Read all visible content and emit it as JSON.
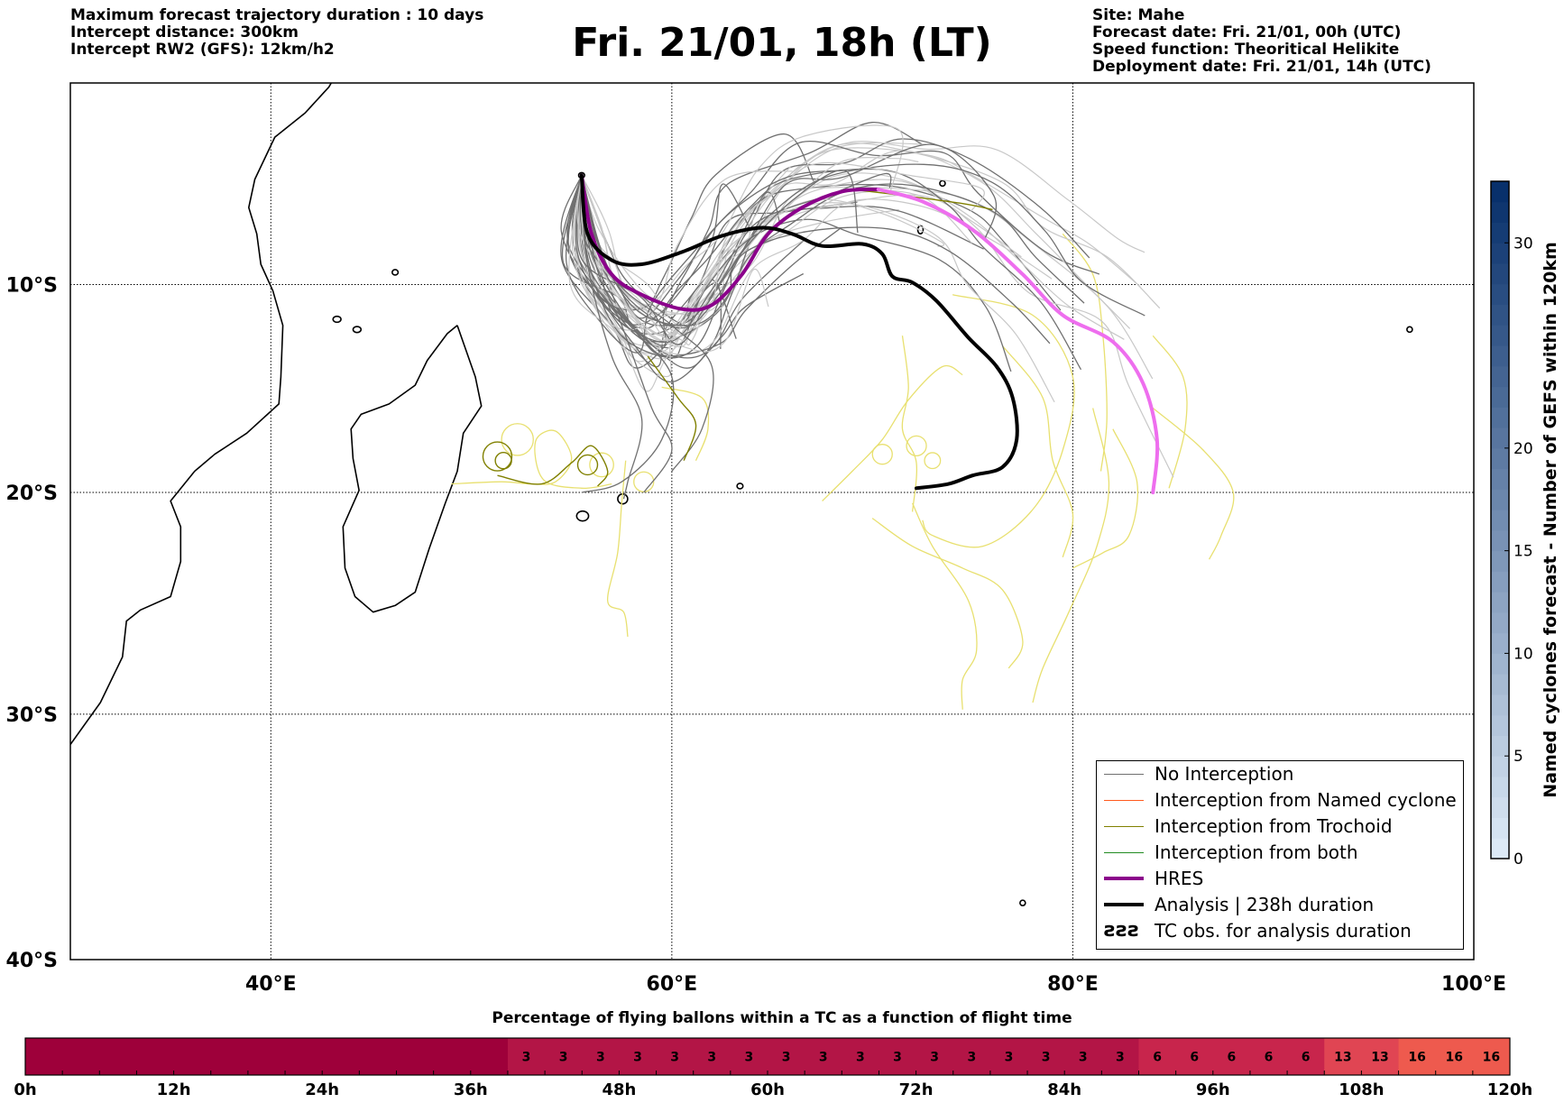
{
  "header_left": {
    "line1": "Maximum forecast trajectory duration : 10 days",
    "line2": "Intercept distance: 300km",
    "line3": "Intercept RW2 (GFS):  12km/h2"
  },
  "title": "Fri. 21/01, 18h (LT)",
  "header_right": {
    "site": "Site: Mahe",
    "forecast_date": "Forecast date: Fri. 21/01, 00h (UTC)",
    "speed_function": "Speed function: Theoritical Helikite",
    "deployment_date": "Deployment date: Fri. 21/01, 14h (UTC)"
  },
  "map": {
    "lon_range": [
      30,
      100
    ],
    "lat_range": [
      -40,
      0
    ],
    "lon_ticks": [
      {
        "value": 40,
        "label": "40°E"
      },
      {
        "value": 60,
        "label": "60°E"
      },
      {
        "value": 80,
        "label": "80°E"
      },
      {
        "value": 100,
        "label": "100°E"
      }
    ],
    "lat_ticks": [
      {
        "value": -10,
        "label": "10°S"
      },
      {
        "value": -20,
        "label": "20°S"
      },
      {
        "value": -30,
        "label": "30°S"
      },
      {
        "value": -40,
        "label": "40°S"
      }
    ],
    "grid": true,
    "colors": {
      "no_interception": "#707070",
      "ensemble_light": "#c8c8c8",
      "named_cyclone": "#ff5a1e",
      "trochoid": "#808000",
      "both": "#228b22",
      "hres": "#8b008b",
      "hres_late": "#ee6eee",
      "analysis": "#000000",
      "cyclone_track": "#e8e070",
      "coast": "#000000"
    },
    "deployment_site": {
      "lon": 55.5,
      "lat": -4.6
    }
  },
  "legend": [
    {
      "label": "No Interception",
      "color": "#707070",
      "width": 1.5
    },
    {
      "label": "Interception from Named cyclone",
      "color": "#ff5a1e",
      "width": 1.5
    },
    {
      "label": "Interception from Trochoid",
      "color": "#808000",
      "width": 1.5
    },
    {
      "label": "Interception from both",
      "color": "#228b22",
      "width": 1.5
    },
    {
      "label": "HRES",
      "color": "#8b008b",
      "width": 4
    },
    {
      "label": "Analysis | 238h duration",
      "color": "#000000",
      "width": 4
    },
    {
      "label": "TC obs. for analysis duration",
      "color": "#000000",
      "width": 0,
      "icon": "ƨƨƨ"
    }
  ],
  "colorbar": {
    "label": "Named cyclones forecast - Number of GEFS within 120km",
    "min": 0,
    "max": 33,
    "ticks": [
      0,
      5,
      10,
      15,
      20,
      30
    ],
    "color_low": "#dce9f6",
    "color_high": "#08306b"
  },
  "bar": {
    "title": "Percentage of flying ballons within a TC as a function of flight time",
    "tick_labels": [
      "0h",
      "12h",
      "24h",
      "36h",
      "48h",
      "60h",
      "72h",
      "84h",
      "96h",
      "108h",
      "120h"
    ],
    "hours_max": 120,
    "hour_step": 3,
    "segments": [
      {
        "from_h": 0,
        "to_h": 39,
        "value": 0,
        "color": "#9e003a"
      },
      {
        "from_h": 39,
        "to_h": 90,
        "value": 3,
        "color": "#b31546"
      },
      {
        "from_h": 90,
        "to_h": 105,
        "value": 6,
        "color": "#c8254c"
      },
      {
        "from_h": 105,
        "to_h": 111,
        "value": 13,
        "color": "#e04553"
      },
      {
        "from_h": 111,
        "to_h": 120,
        "value": 16,
        "color": "#ee5a4e"
      }
    ]
  }
}
